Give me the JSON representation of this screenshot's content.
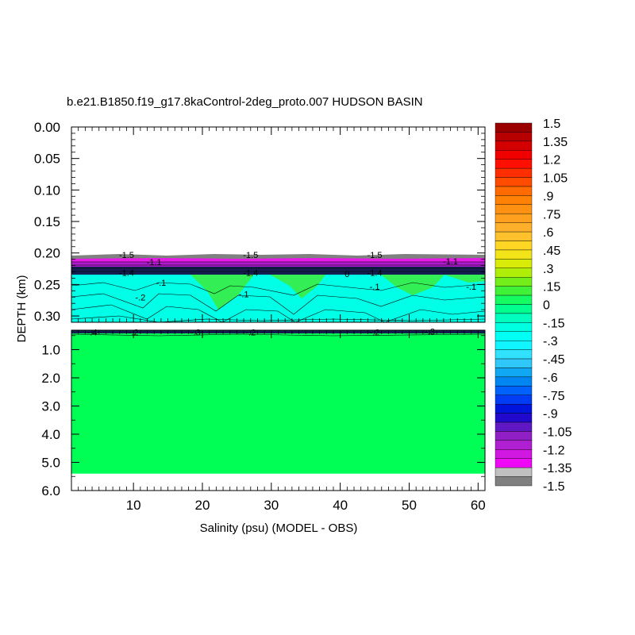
{
  "chart_data": {
    "type": "heatmap",
    "title": "b.e21.B1850.f19_g17.8kaControl-2deg_proto.007 HUDSON BASIN",
    "xlabel": "Salinity (psu) (MODEL - OBS)",
    "ylabel": "DEPTH (km)",
    "x_ticks": [
      "10",
      "20",
      "30",
      "40",
      "50",
      "60"
    ],
    "x_tick_values": [
      10,
      20,
      30,
      40,
      50,
      60
    ],
    "xlim": [
      1,
      61
    ],
    "upper_panel": {
      "ylim": [
        0.0,
        0.31
      ],
      "y_ticks": [
        "0.00",
        "0.05",
        "0.10",
        "0.15",
        "0.20",
        "0.25",
        "0.30"
      ],
      "y_tick_values": [
        0.0,
        0.05,
        0.1,
        0.15,
        0.2,
        0.25,
        0.3
      ]
    },
    "lower_panel": {
      "ylim": [
        0.31,
        6.0
      ],
      "y_ticks": [
        "1.0",
        "2.0",
        "3.0",
        "4.0",
        "5.0",
        "6.0"
      ],
      "y_tick_values": [
        1.0,
        2.0,
        3.0,
        4.0,
        5.0,
        6.0
      ],
      "data_bottom_depth": 5.4
    },
    "colorbar": {
      "min": -1.5,
      "max": 1.5,
      "step": 0.075,
      "labels": [
        "1.5",
        "1.35",
        "1.2",
        "1.05",
        ".9",
        ".75",
        ".6",
        ".45",
        ".3",
        ".15",
        "0",
        "-.15",
        "-.3",
        "-.45",
        "-.6",
        "-.75",
        "-.9",
        "-1.05",
        "-1.2",
        "-1.35",
        "-1.5"
      ]
    },
    "contour_labels": [
      {
        "text": "-1.5",
        "x": 9,
        "depth": 0.203
      },
      {
        "text": "-1.5",
        "x": 27,
        "depth": 0.203
      },
      {
        "text": "-1.5",
        "x": 45,
        "depth": 0.203
      },
      {
        "text": "-1.1",
        "x": 13,
        "depth": 0.214
      },
      {
        "text": "-1.1",
        "x": 56,
        "depth": 0.213
      },
      {
        "text": "-1.4",
        "x": 9,
        "depth": 0.231
      },
      {
        "text": "-1.4",
        "x": 27,
        "depth": 0.231
      },
      {
        "text": "-1.4",
        "x": 45,
        "depth": 0.231
      },
      {
        "text": "0",
        "x": 41,
        "depth": 0.233
      },
      {
        "text": "-.1",
        "x": 14,
        "depth": 0.247
      },
      {
        "text": "-.1",
        "x": 45,
        "depth": 0.253
      },
      {
        "text": "-.1",
        "x": 59,
        "depth": 0.253
      },
      {
        "text": "-.2",
        "x": 11,
        "depth": 0.27
      },
      {
        "text": "-.1",
        "x": 26,
        "depth": 0.265
      },
      {
        "text": "-.4",
        "x": 4,
        "depth": 0.38
      },
      {
        "text": "-.2",
        "x": 10,
        "depth": 0.38
      },
      {
        "text": "-.3",
        "x": 19,
        "depth": 0.38
      },
      {
        "text": "-.2",
        "x": 27,
        "depth": 0.38
      },
      {
        "text": "-.2",
        "x": 45,
        "depth": 0.38
      },
      {
        "text": "-.3",
        "x": 53,
        "depth": 0.35
      }
    ]
  }
}
